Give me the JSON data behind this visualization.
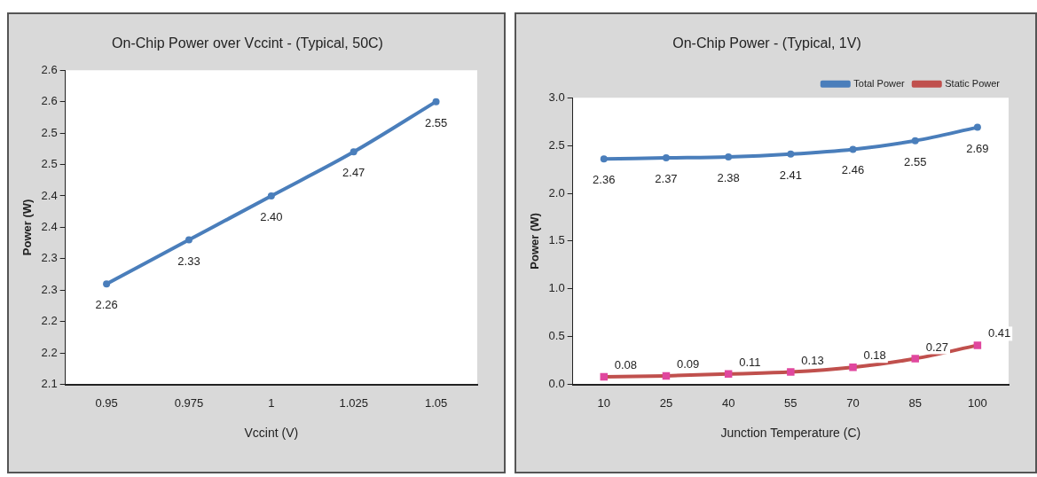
{
  "chart_data": [
    {
      "type": "line",
      "title": "On-Chip Power over Vccint - (Typical, 50C)",
      "xlabel": "Vccint (V)",
      "ylabel": "Power (W)",
      "categories": [
        "0.95",
        "0.975",
        "1",
        "1.025",
        "1.05"
      ],
      "series": [
        {
          "color": "#4a7ebb",
          "values": [
            2.26,
            2.33,
            2.4,
            2.47,
            2.55
          ],
          "value_labels": [
            "2.26",
            "2.33",
            "2.40",
            "2.47",
            "2.55"
          ]
        }
      ],
      "ylim": [
        2.1,
        2.6
      ],
      "yticks": [
        {
          "value": 2.1,
          "label": "2.1"
        },
        {
          "value": 2.15,
          "label": "2.2"
        },
        {
          "value": 2.2,
          "label": "2.2"
        },
        {
          "value": 2.25,
          "label": "2.3"
        },
        {
          "value": 2.3,
          "label": "2.3"
        },
        {
          "value": 2.35,
          "label": "2.4"
        },
        {
          "value": 2.4,
          "label": "2.4"
        },
        {
          "value": 2.45,
          "label": "2.5"
        },
        {
          "value": 2.5,
          "label": "2.5"
        },
        {
          "value": 2.55,
          "label": "2.6"
        },
        {
          "value": 2.6,
          "label": "2.6"
        }
      ],
      "grid": false,
      "legend": false,
      "marker": "circle"
    },
    {
      "type": "line",
      "title": "On-Chip Power - (Typical, 1V)",
      "xlabel": "Junction Temperature (C)",
      "ylabel": "Power (W)",
      "categories": [
        "10",
        "25",
        "40",
        "55",
        "70",
        "85",
        "100"
      ],
      "series": [
        {
          "name": "Total Power",
          "color": "#4a7ebb",
          "marker": "circle",
          "values": [
            2.36,
            2.37,
            2.38,
            2.41,
            2.46,
            2.55,
            2.69
          ],
          "value_labels": [
            "2.36",
            "2.37",
            "2.38",
            "2.41",
            "2.46",
            "2.55",
            "2.69"
          ]
        },
        {
          "name": "Static Power",
          "color": "#c0504d",
          "marker": "square",
          "values": [
            0.08,
            0.09,
            0.11,
            0.13,
            0.18,
            0.27,
            0.41
          ],
          "value_labels": [
            "0.08",
            "0.09",
            "0.11",
            "0.13",
            "0.18",
            "0.27",
            "0.41"
          ]
        }
      ],
      "ylim": [
        0,
        3
      ],
      "yticks": [
        {
          "value": 0,
          "label": "0.0"
        },
        {
          "value": 0.5,
          "label": "0.5"
        },
        {
          "value": 1,
          "label": "1.0"
        },
        {
          "value": 1.5,
          "label": "1.5"
        },
        {
          "value": 2,
          "label": "2.0"
        },
        {
          "value": 2.5,
          "label": "2.5"
        },
        {
          "value": 3,
          "label": "3.0"
        }
      ],
      "grid": false,
      "legend": "top right"
    }
  ]
}
